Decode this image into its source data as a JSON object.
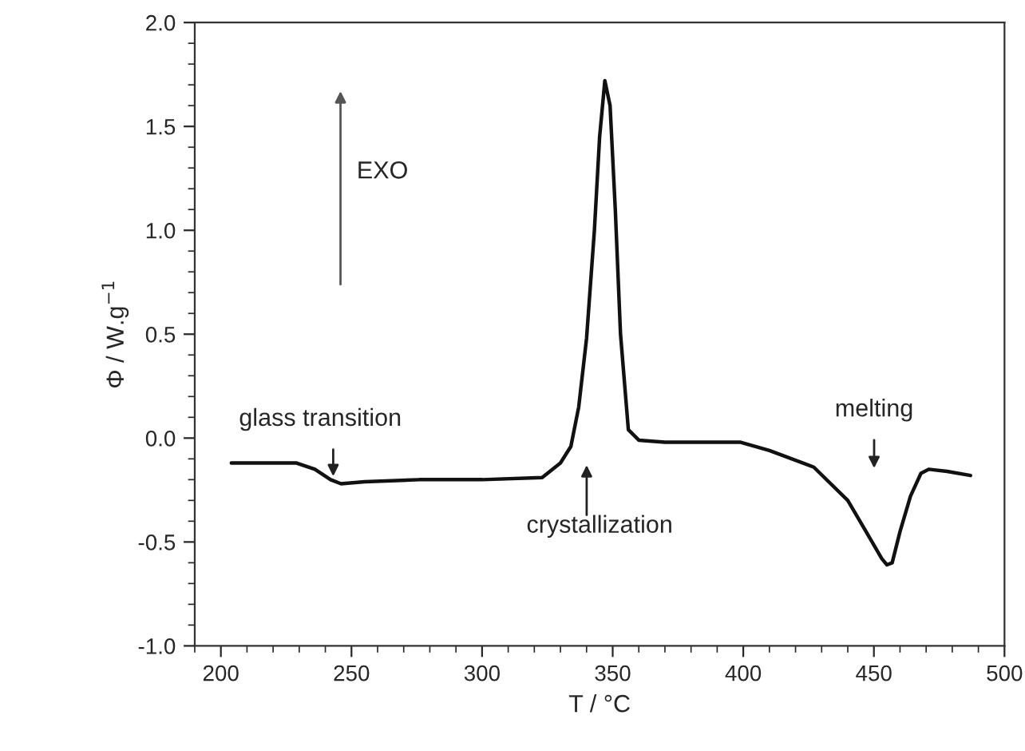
{
  "chart_data": {
    "type": "line",
    "xlabel": "T / °C",
    "ylabel": "Φ / W.g$^{−1}$",
    "series": [
      {
        "color": "#111111",
        "x": [
          204,
          215,
          229,
          236,
          242,
          246,
          255,
          276,
          300,
          323,
          330,
          334,
          337,
          340,
          343,
          345,
          347,
          349,
          351,
          353,
          356,
          360,
          370,
          385,
          399,
          410,
          427,
          440,
          447,
          453,
          455,
          457,
          460,
          464,
          468,
          471,
          478,
          487
        ],
        "values": [
          -0.12,
          -0.12,
          -0.12,
          -0.15,
          -0.2,
          -0.22,
          -0.21,
          -0.2,
          -0.2,
          -0.19,
          -0.12,
          -0.04,
          0.15,
          0.48,
          1.0,
          1.45,
          1.72,
          1.6,
          1.1,
          0.5,
          0.04,
          -0.01,
          -0.02,
          -0.02,
          -0.02,
          -0.06,
          -0.14,
          -0.3,
          -0.45,
          -0.58,
          -0.61,
          -0.6,
          -0.45,
          -0.28,
          -0.17,
          -0.15,
          -0.16,
          -0.18
        ]
      }
    ],
    "xlim": [
      190,
      500
    ],
    "xticks": [
      200,
      250,
      300,
      350,
      400,
      450,
      500
    ],
    "ylim": [
      -1.0,
      2.0
    ],
    "yticks": [
      {
        "value": -1.0,
        "label": "-1.0"
      },
      {
        "value": -0.5,
        "label": "-0.5"
      },
      {
        "value": 0.0,
        "label": "0.0"
      },
      {
        "value": 0.5,
        "label": "0.5"
      },
      {
        "value": 1.0,
        "label": "1.0"
      },
      {
        "value": 1.5,
        "label": "1.5"
      },
      {
        "value": 2.0,
        "label": "2.0"
      }
    ],
    "grid": false,
    "marker": "none",
    "line_style": "solid",
    "annotations": [
      "EXO",
      "glass transition",
      "crystallization",
      "melting"
    ]
  }
}
